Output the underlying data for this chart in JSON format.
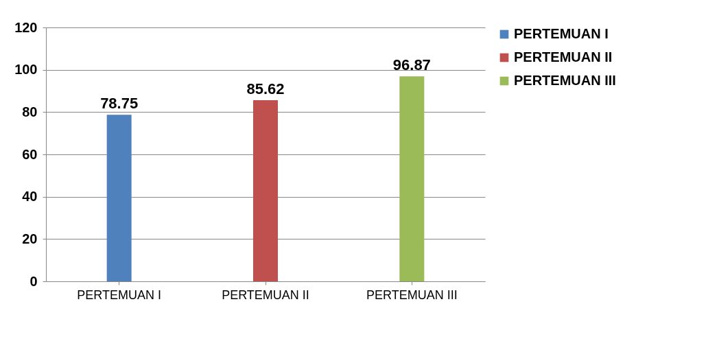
{
  "chart_data": {
    "type": "bar",
    "categories": [
      "PERTEMUAN I",
      "PERTEMUAN II",
      "PERTEMUAN III"
    ],
    "series": [
      {
        "name": "PERTEMUAN I",
        "color": "#4f81bd",
        "values": [
          78.75,
          null,
          null
        ]
      },
      {
        "name": "PERTEMUAN II",
        "color": "#c0504d",
        "values": [
          null,
          85.62,
          null
        ]
      },
      {
        "name": "PERTEMUAN III",
        "color": "#9bbb59",
        "values": [
          null,
          null,
          96.87
        ]
      }
    ],
    "ylim": [
      0,
      120
    ],
    "yticks": [
      0,
      20,
      40,
      60,
      80,
      100,
      120
    ],
    "grid": "y",
    "legend": "right",
    "data_labels": true
  }
}
